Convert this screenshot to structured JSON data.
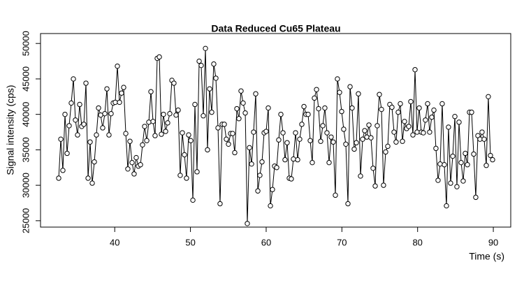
{
  "chart_data": {
    "type": "line",
    "title": "Data Reduced Cu65 Plateau",
    "x_label": "Time (s)",
    "y_label": "Signal intensity (cps)",
    "color": "#000000",
    "markers": true,
    "xlim": [
      30.2,
      92.3
    ],
    "ylim": [
      24100,
      51400
    ],
    "xticks": [
      40,
      50,
      60,
      70,
      80,
      90
    ],
    "yticks": [
      25000,
      30000,
      35000,
      40000,
      45000,
      50000
    ],
    "x": [
      32.6,
      32.88,
      33.15,
      33.43,
      33.71,
      33.98,
      34.26,
      34.54,
      34.81,
      35.09,
      35.37,
      35.64,
      35.92,
      36.2,
      36.48,
      36.75,
      37.03,
      37.31,
      37.58,
      37.86,
      38.14,
      38.41,
      38.69,
      38.97,
      39.24,
      39.52,
      39.8,
      40.07,
      40.35,
      40.63,
      40.9,
      41.18,
      41.46,
      41.73,
      42.01,
      42.29,
      42.56,
      42.84,
      43.12,
      43.4,
      43.67,
      43.95,
      44.23,
      44.5,
      44.78,
      45.06,
      45.33,
      45.61,
      45.89,
      46.16,
      46.44,
      46.72,
      46.99,
      47.27,
      47.55,
      47.82,
      48.1,
      48.38,
      48.65,
      48.93,
      49.21,
      49.48,
      49.76,
      50.04,
      50.32,
      50.59,
      50.87,
      51.15,
      51.42,
      51.7,
      51.98,
      52.25,
      52.53,
      52.81,
      53.08,
      53.36,
      53.64,
      53.91,
      54.19,
      54.47,
      54.74,
      55.02,
      55.3,
      55.57,
      55.85,
      56.13,
      56.4,
      56.68,
      56.96,
      57.24,
      57.51,
      57.79,
      58.07,
      58.34,
      58.62,
      58.9,
      59.17,
      59.45,
      59.73,
      60.0,
      60.28,
      60.56,
      60.83,
      61.11,
      61.39,
      61.66,
      61.94,
      62.22,
      62.49,
      62.77,
      63.05,
      63.32,
      63.6,
      63.88,
      64.16,
      64.43,
      64.71,
      64.99,
      65.26,
      65.54,
      65.82,
      66.09,
      66.37,
      66.65,
      66.92,
      67.2,
      67.48,
      67.75,
      68.03,
      68.31,
      68.58,
      68.86,
      69.14,
      69.41,
      69.69,
      69.97,
      70.24,
      70.52,
      70.8,
      71.08,
      71.35,
      71.63,
      71.91,
      72.18,
      72.46,
      72.74,
      73.01,
      73.29,
      73.57,
      73.84,
      74.12,
      74.4,
      74.67,
      74.95,
      75.23,
      75.5,
      75.78,
      76.06,
      76.33,
      76.61,
      76.89,
      77.16,
      77.44,
      77.72,
      78.0,
      78.27,
      78.55,
      78.83,
      79.1,
      79.38,
      79.66,
      79.93,
      80.21,
      80.49,
      80.76,
      81.04,
      81.32,
      81.59,
      81.87,
      82.15,
      82.42,
      82.7,
      82.98,
      83.25,
      83.53,
      83.81,
      84.08,
      84.36,
      84.64,
      84.92,
      85.19,
      85.47,
      85.75,
      86.02,
      86.3,
      86.58,
      86.85,
      87.13,
      87.41,
      87.68,
      87.96,
      88.24,
      88.51,
      88.79,
      89.07,
      89.34,
      89.62,
      89.9
    ],
    "values": [
      31000,
      36500,
      32100,
      40000,
      34500,
      38400,
      41600,
      45000,
      39200,
      37100,
      41400,
      38300,
      38600,
      44400,
      31000,
      36100,
      30300,
      33300,
      37100,
      40900,
      39900,
      38100,
      40100,
      43600,
      37100,
      40100,
      41600,
      41700,
      46800,
      41700,
      43000,
      43800,
      37300,
      32300,
      36200,
      33200,
      31600,
      33900,
      32700,
      32900,
      35700,
      38300,
      36300,
      38900,
      43200,
      39000,
      37000,
      47900,
      48100,
      37200,
      40000,
      37600,
      38800,
      40100,
      44800,
      44400,
      39900,
      40600,
      31400,
      37400,
      34300,
      31000,
      37100,
      36300,
      27900,
      41400,
      31900,
      47500,
      46900,
      39800,
      49300,
      35000,
      43600,
      40300,
      47100,
      45100,
      38100,
      27400,
      38600,
      38600,
      36500,
      35800,
      37300,
      37300,
      34600,
      40800,
      39400,
      43300,
      41600,
      40200,
      24600,
      35300,
      33000,
      37500,
      42900,
      29200,
      31400,
      33300,
      37400,
      37600,
      40900,
      27100,
      29400,
      32700,
      32500,
      36400,
      40000,
      37400,
      33600,
      36000,
      31000,
      30900,
      33700,
      37400,
      33600,
      36500,
      38600,
      41100,
      40000,
      40000,
      36300,
      33200,
      42300,
      43500,
      40800,
      36200,
      38400,
      40900,
      37400,
      33200,
      36800,
      36100,
      28600,
      45000,
      43100,
      40400,
      37900,
      35800,
      27400,
      43900,
      40900,
      35100,
      36000,
      42900,
      31300,
      36500,
      37700,
      36800,
      38500,
      36700,
      32400,
      29900,
      38400,
      42800,
      40700,
      30000,
      34700,
      35500,
      41400,
      41000,
      37500,
      36100,
      40300,
      41500,
      36200,
      39000,
      38000,
      38300,
      41800,
      37100,
      46300,
      37500,
      40900,
      37500,
      37400,
      39200,
      41500,
      37500,
      39600,
      40600,
      35200,
      30700,
      33000,
      41500,
      32900,
      27100,
      38200,
      30300,
      34100,
      39700,
      29800,
      38900,
      33200,
      30600,
      34500,
      32900,
      40300,
      40300,
      34400,
      28300,
      37000,
      36500,
      37500,
      36500,
      32800,
      42500,
      34200,
      33600
    ]
  }
}
